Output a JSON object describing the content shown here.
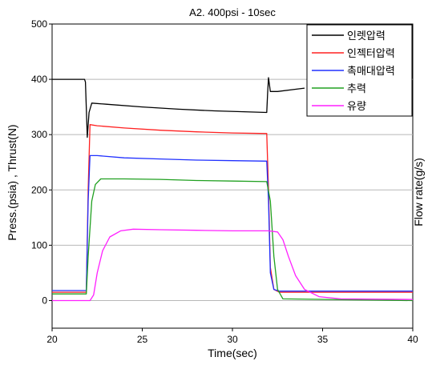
{
  "chart_data": {
    "type": "line",
    "title": "A2. 400psi - 10sec",
    "xlabel": "Time(sec)",
    "ylabel_left": "Press.(psia) , Thrust(N)",
    "ylabel_right": "Flow rate(g/s)",
    "xlim": [
      20,
      40
    ],
    "ylim": [
      -50,
      500
    ],
    "x_ticks": [
      20,
      25,
      30,
      35,
      40
    ],
    "y_ticks": [
      0,
      100,
      200,
      300,
      400,
      500
    ],
    "grid": true,
    "legend_position": "top-right",
    "series": [
      {
        "name": "인렛압력",
        "color": "#000000",
        "points": [
          [
            20,
            400
          ],
          [
            21.8,
            400
          ],
          [
            21.85,
            395
          ],
          [
            21.95,
            295
          ],
          [
            22.05,
            340
          ],
          [
            22.2,
            357
          ],
          [
            23,
            355
          ],
          [
            25,
            350
          ],
          [
            27,
            346
          ],
          [
            29,
            343
          ],
          [
            31.9,
            340
          ],
          [
            31.95,
            375
          ],
          [
            32,
            403
          ],
          [
            32.1,
            378
          ],
          [
            32.5,
            378
          ],
          [
            33.5,
            382
          ],
          [
            34,
            384
          ]
        ]
      },
      {
        "name": "인젝터압력",
        "color": "#ff2020",
        "points": [
          [
            20,
            15
          ],
          [
            21.9,
            15
          ],
          [
            22.0,
            200
          ],
          [
            22.1,
            318
          ],
          [
            22.5,
            316
          ],
          [
            24,
            312
          ],
          [
            26,
            308
          ],
          [
            28,
            305
          ],
          [
            30,
            303
          ],
          [
            31.9,
            302
          ],
          [
            32.0,
            200
          ],
          [
            32.1,
            60
          ],
          [
            32.3,
            20
          ],
          [
            32.6,
            15
          ],
          [
            40,
            15
          ]
        ]
      },
      {
        "name": "촉매대압력",
        "color": "#2030ff",
        "points": [
          [
            20,
            18
          ],
          [
            21.9,
            18
          ],
          [
            22.0,
            180
          ],
          [
            22.1,
            262
          ],
          [
            22.5,
            262
          ],
          [
            24,
            258
          ],
          [
            26,
            256
          ],
          [
            28,
            254
          ],
          [
            30,
            253
          ],
          [
            31.9,
            252
          ],
          [
            32.0,
            180
          ],
          [
            32.1,
            50
          ],
          [
            32.3,
            20
          ],
          [
            32.6,
            17
          ],
          [
            40,
            17
          ]
        ]
      },
      {
        "name": "추력",
        "color": "#20a020",
        "points": [
          [
            20,
            12
          ],
          [
            21.9,
            12
          ],
          [
            22.0,
            80
          ],
          [
            22.2,
            180
          ],
          [
            22.4,
            210
          ],
          [
            22.7,
            220
          ],
          [
            24,
            220
          ],
          [
            26,
            219
          ],
          [
            28,
            217
          ],
          [
            30,
            216
          ],
          [
            31.9,
            215
          ],
          [
            32.1,
            180
          ],
          [
            32.3,
            80
          ],
          [
            32.5,
            20
          ],
          [
            32.8,
            3
          ],
          [
            40,
            0
          ]
        ]
      },
      {
        "name": "유량",
        "color": "#ff20ff",
        "points": [
          [
            20,
            0
          ],
          [
            22.1,
            0
          ],
          [
            22.3,
            10
          ],
          [
            22.5,
            50
          ],
          [
            22.8,
            90
          ],
          [
            23.2,
            115
          ],
          [
            23.8,
            126
          ],
          [
            24.5,
            129
          ],
          [
            26,
            128
          ],
          [
            28,
            127
          ],
          [
            30,
            126
          ],
          [
            32,
            126
          ],
          [
            32.5,
            124
          ],
          [
            32.8,
            110
          ],
          [
            33.1,
            80
          ],
          [
            33.5,
            45
          ],
          [
            34,
            20
          ],
          [
            34.8,
            7
          ],
          [
            36,
            3
          ],
          [
            40,
            2
          ]
        ]
      }
    ]
  }
}
